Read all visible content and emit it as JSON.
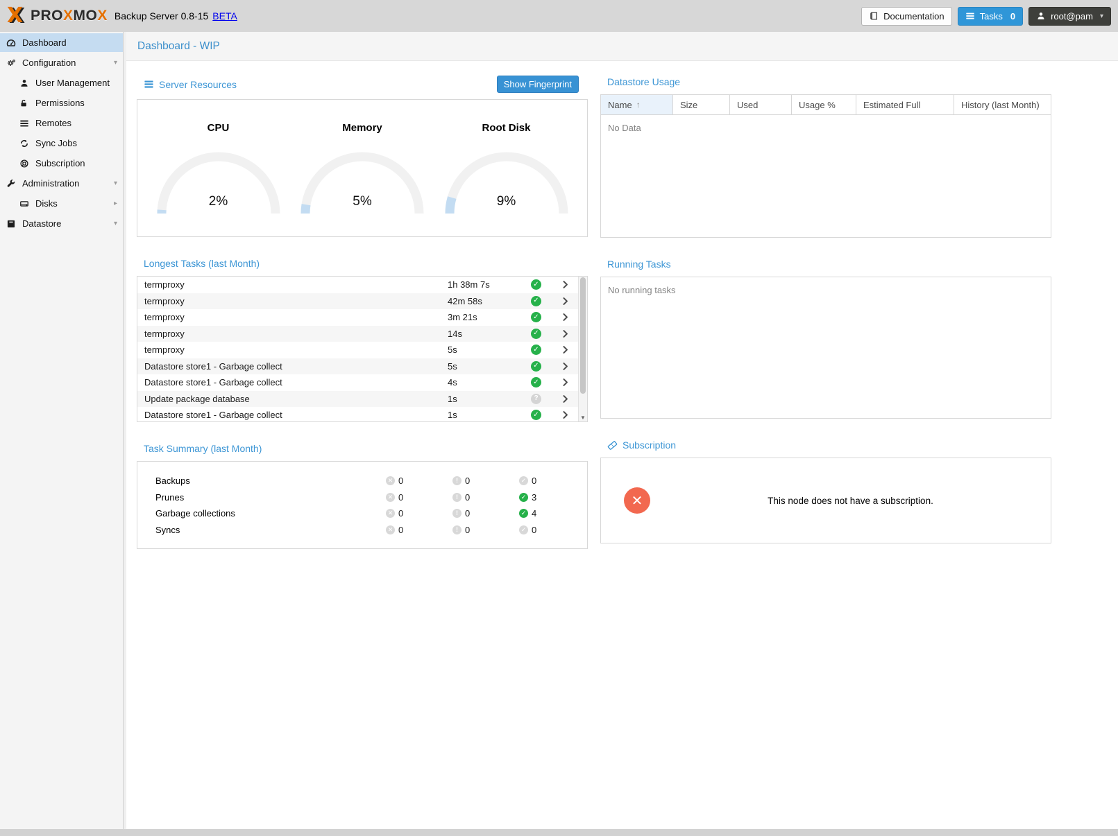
{
  "topbar": {
    "brand_mark": "X",
    "brand_parts": [
      {
        "text": "PRO",
        "accent": false
      },
      {
        "text": "X",
        "accent": true
      },
      {
        "text": "MO",
        "accent": false
      },
      {
        "text": "X",
        "accent": true
      }
    ],
    "subtitle": "Backup Server 0.8-15",
    "beta": "BETA",
    "documentation_label": "Documentation",
    "tasks_label": "Tasks",
    "tasks_count": "0",
    "user_label": "root@pam"
  },
  "sidebar": {
    "items": [
      {
        "label": "Dashboard",
        "icon": "tachometer",
        "level": 0,
        "selected": true,
        "expand": null
      },
      {
        "label": "Configuration",
        "icon": "gears",
        "level": 0,
        "selected": false,
        "expand": "down"
      },
      {
        "label": "User Management",
        "icon": "user",
        "level": 1,
        "selected": false,
        "expand": null
      },
      {
        "label": "Permissions",
        "icon": "unlock",
        "level": 1,
        "selected": false,
        "expand": null
      },
      {
        "label": "Remotes",
        "icon": "bars",
        "level": 1,
        "selected": false,
        "expand": null
      },
      {
        "label": "Sync Jobs",
        "icon": "sync",
        "level": 1,
        "selected": false,
        "expand": null
      },
      {
        "label": "Subscription",
        "icon": "life-ring",
        "level": 1,
        "selected": false,
        "expand": null
      },
      {
        "label": "Administration",
        "icon": "wrench",
        "level": 0,
        "selected": false,
        "expand": "down"
      },
      {
        "label": "Disks",
        "icon": "disk",
        "level": 1,
        "selected": false,
        "expand": "right"
      },
      {
        "label": "Datastore",
        "icon": "datastore",
        "level": 0,
        "selected": false,
        "expand": "down"
      }
    ]
  },
  "page_title": "Dashboard - WIP",
  "panels": {
    "server_resources": {
      "title": "Server Resources",
      "fingerprint_button": "Show Fingerprint",
      "gauges": [
        {
          "label": "CPU",
          "value": 2,
          "text": "2%"
        },
        {
          "label": "Memory",
          "value": 5,
          "text": "5%"
        },
        {
          "label": "Root Disk",
          "value": 9,
          "text": "9%"
        }
      ]
    },
    "datastore_usage": {
      "title": "Datastore Usage",
      "columns": [
        "Name",
        "Size",
        "Used",
        "Usage %",
        "Estimated Full",
        "History (last Month)"
      ],
      "sorted_column": "Name",
      "empty_text": "No Data"
    },
    "longest_tasks": {
      "title": "Longest Tasks (last Month)",
      "rows": [
        {
          "name": "termproxy",
          "duration": "1h 38m 7s",
          "status": "ok"
        },
        {
          "name": "termproxy",
          "duration": "42m 58s",
          "status": "ok"
        },
        {
          "name": "termproxy",
          "duration": "3m 21s",
          "status": "ok"
        },
        {
          "name": "termproxy",
          "duration": "14s",
          "status": "ok"
        },
        {
          "name": "termproxy",
          "duration": "5s",
          "status": "ok"
        },
        {
          "name": "Datastore store1 - Garbage collect",
          "duration": "5s",
          "status": "ok"
        },
        {
          "name": "Datastore store1 - Garbage collect",
          "duration": "4s",
          "status": "ok"
        },
        {
          "name": "Update package database",
          "duration": "1s",
          "status": "unknown"
        },
        {
          "name": "Datastore store1 - Garbage collect",
          "duration": "1s",
          "status": "ok"
        }
      ]
    },
    "running_tasks": {
      "title": "Running Tasks",
      "empty_text": "No running tasks"
    },
    "task_summary": {
      "title": "Task Summary (last Month)",
      "rows": [
        {
          "label": "Backups",
          "error": "0",
          "warning": "0",
          "ok": "0",
          "ok_green": false
        },
        {
          "label": "Prunes",
          "error": "0",
          "warning": "0",
          "ok": "3",
          "ok_green": true
        },
        {
          "label": "Garbage collections",
          "error": "0",
          "warning": "0",
          "ok": "4",
          "ok_green": true
        },
        {
          "label": "Syncs",
          "error": "0",
          "warning": "0",
          "ok": "0",
          "ok_green": false
        }
      ]
    },
    "subscription": {
      "title": "Subscription",
      "message": "This node does not have a subscription."
    }
  },
  "colors": {
    "accent_blue": "#3892d4",
    "title_blue": "#3d96d5",
    "brand_orange": "#e57000",
    "gauge_fill": "#c3dcf2",
    "gauge_track": "#f1f1f1",
    "ok_green": "#26b14a",
    "neutral_gray": "#d6d6d6",
    "error_red": "#f2684f",
    "selected_row": "#c5dcf1"
  }
}
